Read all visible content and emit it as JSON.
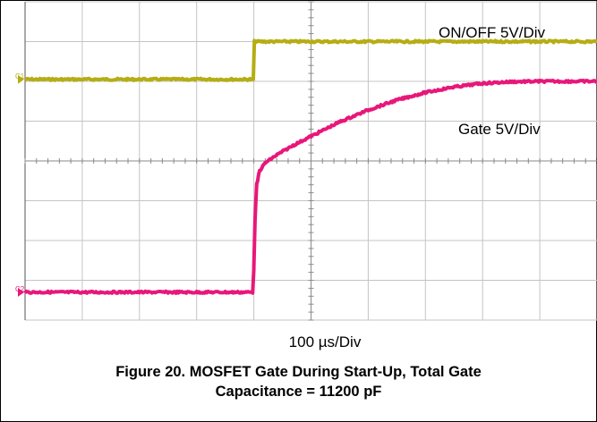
{
  "chart_data": {
    "type": "line",
    "title": "",
    "xlabel": "100 µs/Div",
    "ylabel": "",
    "grid": true,
    "x_divisions": 10,
    "y_divisions": 8,
    "x_unit": "µs",
    "x_range_us": [
      0,
      1000
    ],
    "y_range_div": [
      0,
      8
    ],
    "series": [
      {
        "name": "ON/OFF 5V/Div",
        "channel_marker": "C1",
        "color": "#b5ad13",
        "x": [
          0,
          399,
          401,
          1000
        ],
        "y_div": [
          6.05,
          6.05,
          7.0,
          7.0
        ]
      },
      {
        "name": "Gate 5V/Div",
        "channel_marker": "C2",
        "color": "#e8177a",
        "x": [
          0,
          398,
          400,
          402,
          405,
          410,
          420,
          440,
          470,
          500,
          550,
          600,
          650,
          700,
          750,
          800,
          850,
          900,
          950,
          1000
        ],
        "y_div": [
          0.7,
          0.7,
          1.3,
          2.5,
          3.4,
          3.75,
          3.95,
          4.15,
          4.4,
          4.62,
          4.98,
          5.28,
          5.53,
          5.72,
          5.86,
          5.95,
          5.99,
          6.0,
          6.0,
          6.0
        ]
      }
    ]
  },
  "caption": {
    "line1": "Figure 20. MOSFET Gate During Start-Up, Total Gate",
    "line2": "Capacitance = 11200 pF"
  }
}
